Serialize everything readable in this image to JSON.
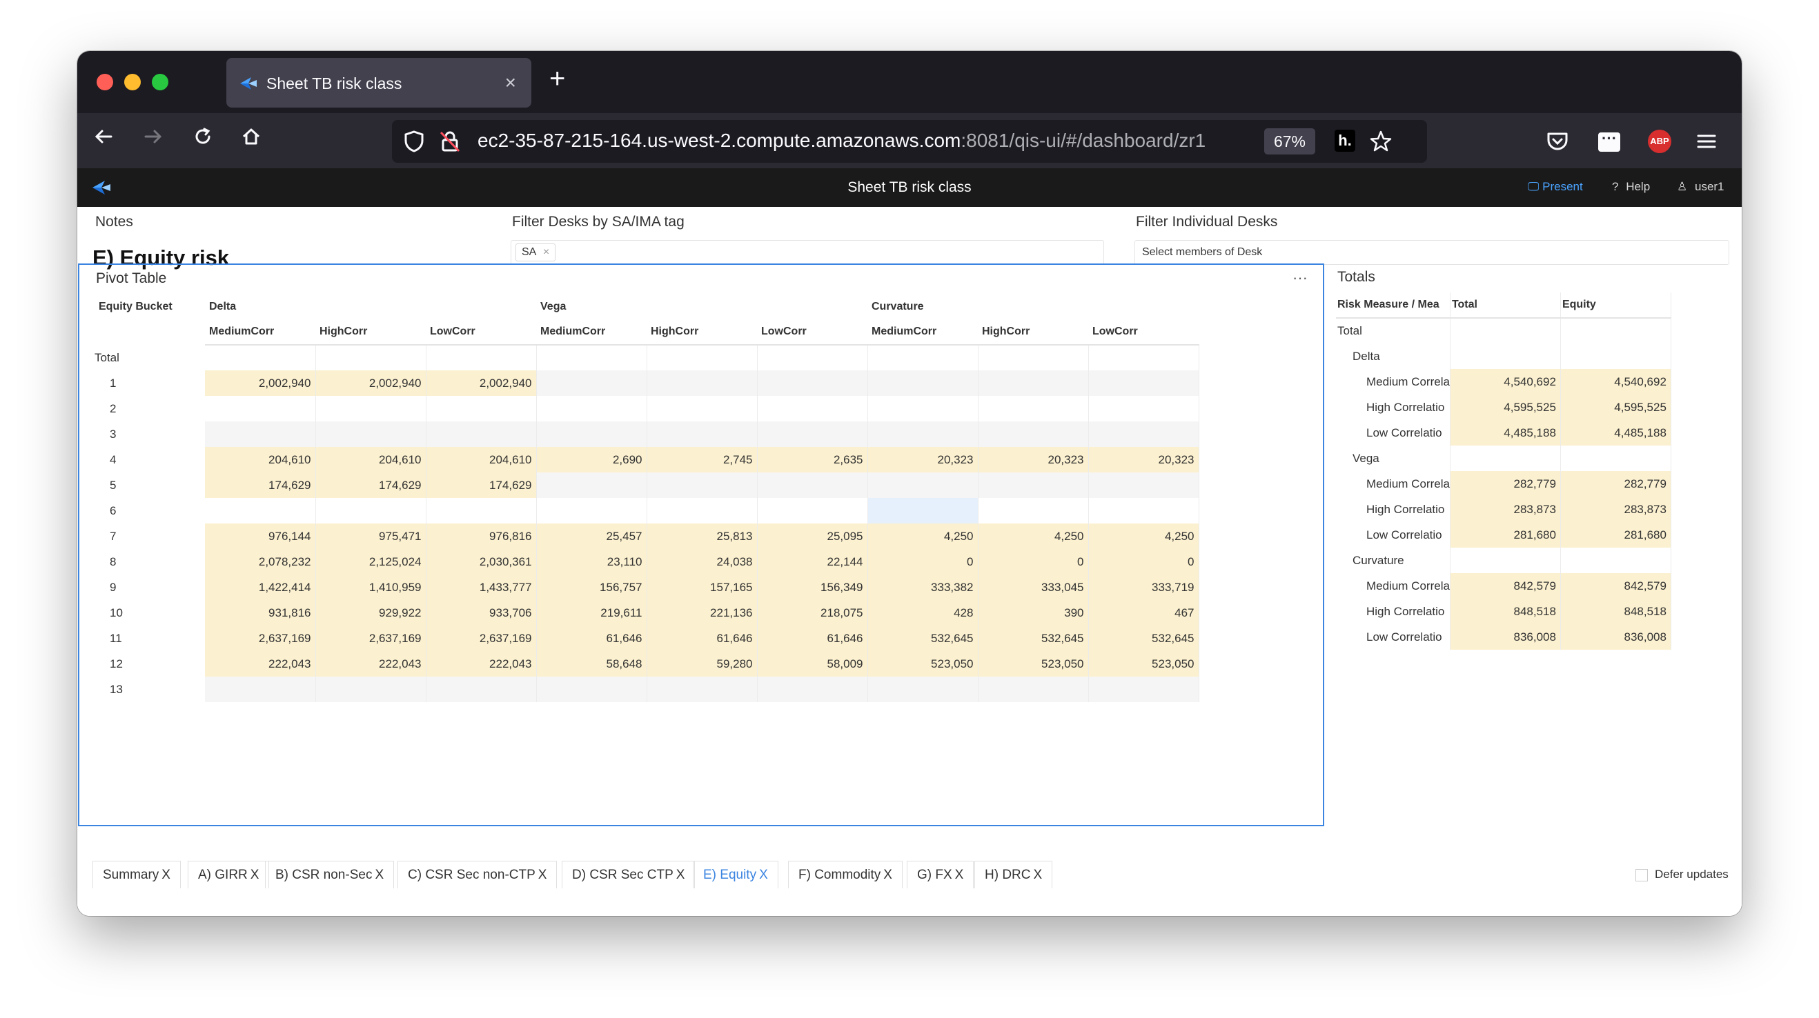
{
  "browser": {
    "tab_title": "Sheet TB risk class",
    "url_host": "ec2-35-87-215-164.us-west-2.compute.amazonaws.com",
    "url_path": ":8081/qis-ui/#/dashboard/zr1",
    "zoom": "67%",
    "ext_abp": "ABP",
    "ext_h": "h."
  },
  "app": {
    "title": "Sheet TB risk class",
    "present": "Present",
    "help": "Help",
    "user": "user1"
  },
  "notes": {
    "label": "Notes",
    "heading": "E) Equity risk"
  },
  "filter_sa": {
    "label": "Filter Desks by SA/IMA tag",
    "chip": "SA",
    "chip_x": "×"
  },
  "filter_desks": {
    "label": "Filter Individual Desks",
    "placeholder": "Select members of Desk"
  },
  "pivot": {
    "title": "Pivot Table",
    "menu": "···",
    "row_header": "Equity Bucket",
    "groups": [
      "Delta",
      "Vega",
      "Curvature"
    ],
    "subcols": [
      "MediumCorr",
      "HighCorr",
      "LowCorr",
      "MediumCorr",
      "HighCorr",
      "LowCorr",
      "MediumCorr",
      "HighCorr",
      "LowCorr"
    ],
    "total_label": "Total",
    "rows": [
      {
        "b": "1",
        "v": [
          "2,002,940",
          "2,002,940",
          "2,002,940",
          "",
          "",
          "",
          "",
          "",
          ""
        ]
      },
      {
        "b": "2",
        "v": [
          "",
          "",
          "",
          "",
          "",
          "",
          "",
          "",
          ""
        ]
      },
      {
        "b": "3",
        "v": [
          "",
          "",
          "",
          "",
          "",
          "",
          "",
          "",
          ""
        ]
      },
      {
        "b": "4",
        "v": [
          "204,610",
          "204,610",
          "204,610",
          "2,690",
          "2,745",
          "2,635",
          "20,323",
          "20,323",
          "20,323"
        ]
      },
      {
        "b": "5",
        "v": [
          "174,629",
          "174,629",
          "174,629",
          "",
          "",
          "",
          "",
          "",
          ""
        ]
      },
      {
        "b": "6",
        "v": [
          "",
          "",
          "",
          "",
          "",
          "",
          "",
          "",
          ""
        ]
      },
      {
        "b": "7",
        "v": [
          "976,144",
          "975,471",
          "976,816",
          "25,457",
          "25,813",
          "25,095",
          "4,250",
          "4,250",
          "4,250"
        ]
      },
      {
        "b": "8",
        "v": [
          "2,078,232",
          "2,125,024",
          "2,030,361",
          "23,110",
          "24,038",
          "22,144",
          "0",
          "0",
          "0"
        ]
      },
      {
        "b": "9",
        "v": [
          "1,422,414",
          "1,410,959",
          "1,433,777",
          "156,757",
          "157,165",
          "156,349",
          "333,382",
          "333,045",
          "333,719"
        ]
      },
      {
        "b": "10",
        "v": [
          "931,816",
          "929,922",
          "933,706",
          "219,611",
          "221,136",
          "218,075",
          "428",
          "390",
          "467"
        ]
      },
      {
        "b": "11",
        "v": [
          "2,637,169",
          "2,637,169",
          "2,637,169",
          "61,646",
          "61,646",
          "61,646",
          "532,645",
          "532,645",
          "532,645"
        ]
      },
      {
        "b": "12",
        "v": [
          "222,043",
          "222,043",
          "222,043",
          "58,648",
          "59,280",
          "58,009",
          "523,050",
          "523,050",
          "523,050"
        ]
      },
      {
        "b": "13",
        "v": [
          "",
          "",
          "",
          "",
          "",
          "",
          "",
          "",
          ""
        ]
      }
    ]
  },
  "totals": {
    "title": "Totals",
    "headers": [
      "Risk Measure / Mea",
      "Total",
      "Equity"
    ],
    "rows": [
      {
        "label": "Total",
        "level": 0,
        "total": "",
        "equity": ""
      },
      {
        "label": "Delta",
        "level": 1,
        "total": "",
        "equity": ""
      },
      {
        "label": "Medium Correla",
        "level": 2,
        "total": "4,540,692",
        "equity": "4,540,692"
      },
      {
        "label": "High Correlatio",
        "level": 2,
        "total": "4,595,525",
        "equity": "4,595,525"
      },
      {
        "label": "Low Correlatio",
        "level": 2,
        "total": "4,485,188",
        "equity": "4,485,188"
      },
      {
        "label": "Vega",
        "level": 1,
        "total": "",
        "equity": ""
      },
      {
        "label": "Medium Correla",
        "level": 2,
        "total": "282,779",
        "equity": "282,779"
      },
      {
        "label": "High Correlatio",
        "level": 2,
        "total": "283,873",
        "equity": "283,873"
      },
      {
        "label": "Low Correlatio",
        "level": 2,
        "total": "281,680",
        "equity": "281,680"
      },
      {
        "label": "Curvature",
        "level": 1,
        "total": "",
        "equity": ""
      },
      {
        "label": "Medium Correla",
        "level": 2,
        "total": "842,579",
        "equity": "842,579"
      },
      {
        "label": "High Correlatio",
        "level": 2,
        "total": "848,518",
        "equity": "848,518"
      },
      {
        "label": "Low Correlatio",
        "level": 2,
        "total": "836,008",
        "equity": "836,008"
      }
    ]
  },
  "sheet_tabs": [
    {
      "label": "Summary",
      "active": false
    },
    {
      "label": "A) GIRR",
      "active": false
    },
    {
      "label": "B) CSR non-Sec",
      "active": false
    },
    {
      "label": "C) CSR Sec non-CTP",
      "active": false
    },
    {
      "label": "D) CSR Sec CTP",
      "active": false
    },
    {
      "label": "E) Equity",
      "active": true
    },
    {
      "label": "F) Commodity",
      "active": false
    },
    {
      "label": "G) FX",
      "active": false
    },
    {
      "label": "H) DRC",
      "active": false
    }
  ],
  "tab_close": "X",
  "defer_updates": "Defer updates",
  "colors": {
    "highlight": "#fbf0cf",
    "accent": "#3b84e0",
    "selected": "#e5f0fc"
  }
}
